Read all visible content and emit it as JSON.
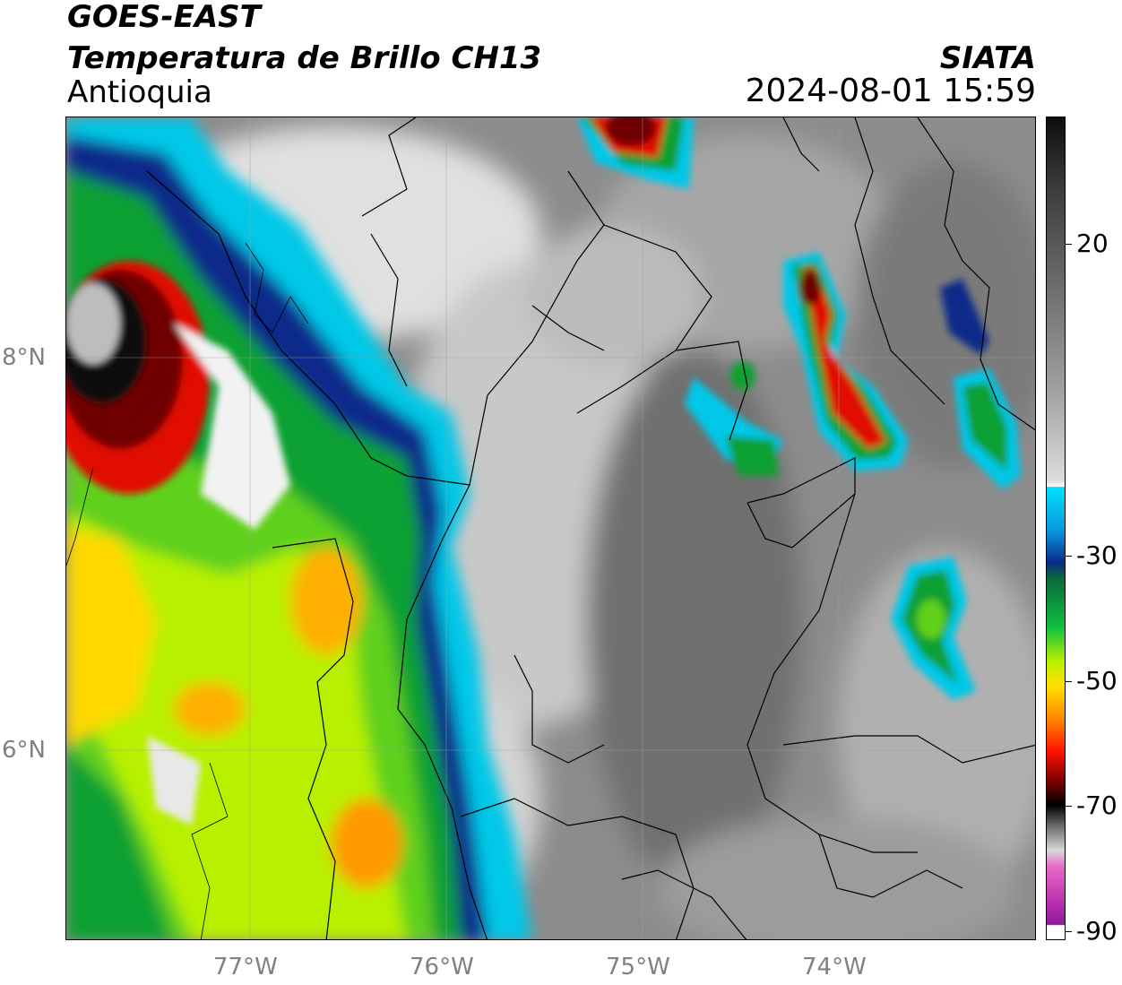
{
  "header": {
    "satellite": "GOES-EAST",
    "product": "Temperatura de Brillo CH13",
    "region": "Antioquia",
    "brand": "SIATA",
    "timestamp": "2024-08-01 15:59"
  },
  "axes": {
    "latitude_labels": [
      "8°N",
      "6°N"
    ],
    "longitude_labels": [
      "77°W",
      "76°W",
      "75°W",
      "74°W"
    ]
  },
  "colorbar": {
    "tick_labels": [
      "20",
      "-30",
      "-50",
      "-70",
      "-90"
    ],
    "colors": {
      "warm_black": "#111111",
      "warm_gray": "#777777",
      "near_white": "#f2f2f2",
      "cyan": "#00c8e8",
      "dark_blue": "#0a2a8a",
      "green": "#10a030",
      "lime": "#b8f000",
      "yellow": "#ffd800",
      "orange": "#ff7a00",
      "red": "#e01000",
      "dark_red": "#700000",
      "cold_black": "#050505",
      "light_gray": "#d8d8d8",
      "pink": "#e060c8",
      "purple": "#8a1a9a"
    }
  }
}
